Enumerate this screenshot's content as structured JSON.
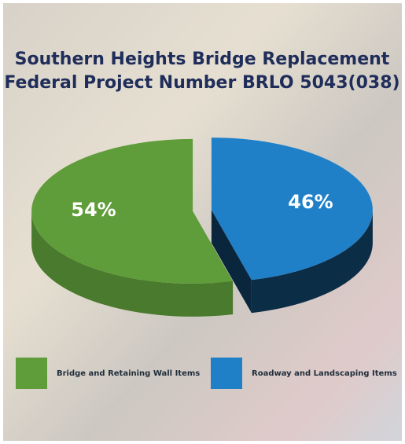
{
  "chart_data": {
    "type": "pie",
    "title": "Southern Heights Bridge Replacement",
    "subtitle": "Federal Project Number BRLO 5043(038)",
    "categories": [
      "Bridge and Retaining Wall Items",
      "Roadway and Landscaping Items"
    ],
    "values": [
      54,
      46
    ],
    "value_labels": [
      "54%",
      "46%"
    ],
    "colors": [
      "#5f9c3a",
      "#1f80c8"
    ]
  }
}
